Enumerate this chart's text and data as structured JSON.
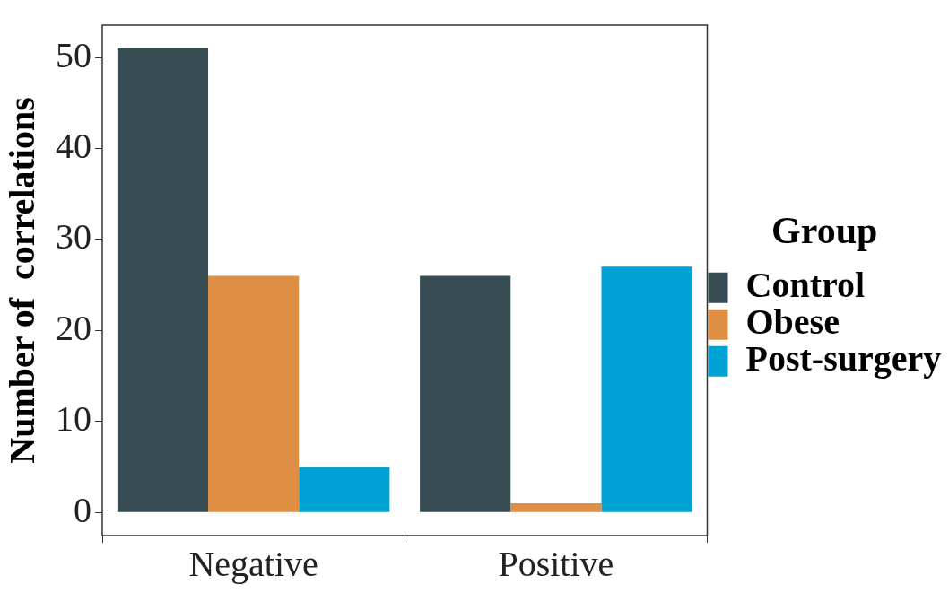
{
  "chart_data": {
    "type": "bar",
    "ylabel": "Number of  correlations",
    "legend_title": "Group",
    "legend": "right",
    "categories": [
      "Negative",
      "Positive"
    ],
    "series": [
      {
        "name": "Control",
        "color": "#374c52",
        "values": [
          51,
          26
        ]
      },
      {
        "name": "Obese",
        "color": "#de8f44",
        "values": [
          26,
          1
        ]
      },
      {
        "name": "Post-surgery",
        "color": "#00a2d6",
        "values": [
          5,
          27
        ]
      }
    ],
    "ylim": [
      -2.55,
      53.55
    ],
    "yticks": [
      0,
      10,
      20,
      30,
      40,
      50
    ]
  }
}
